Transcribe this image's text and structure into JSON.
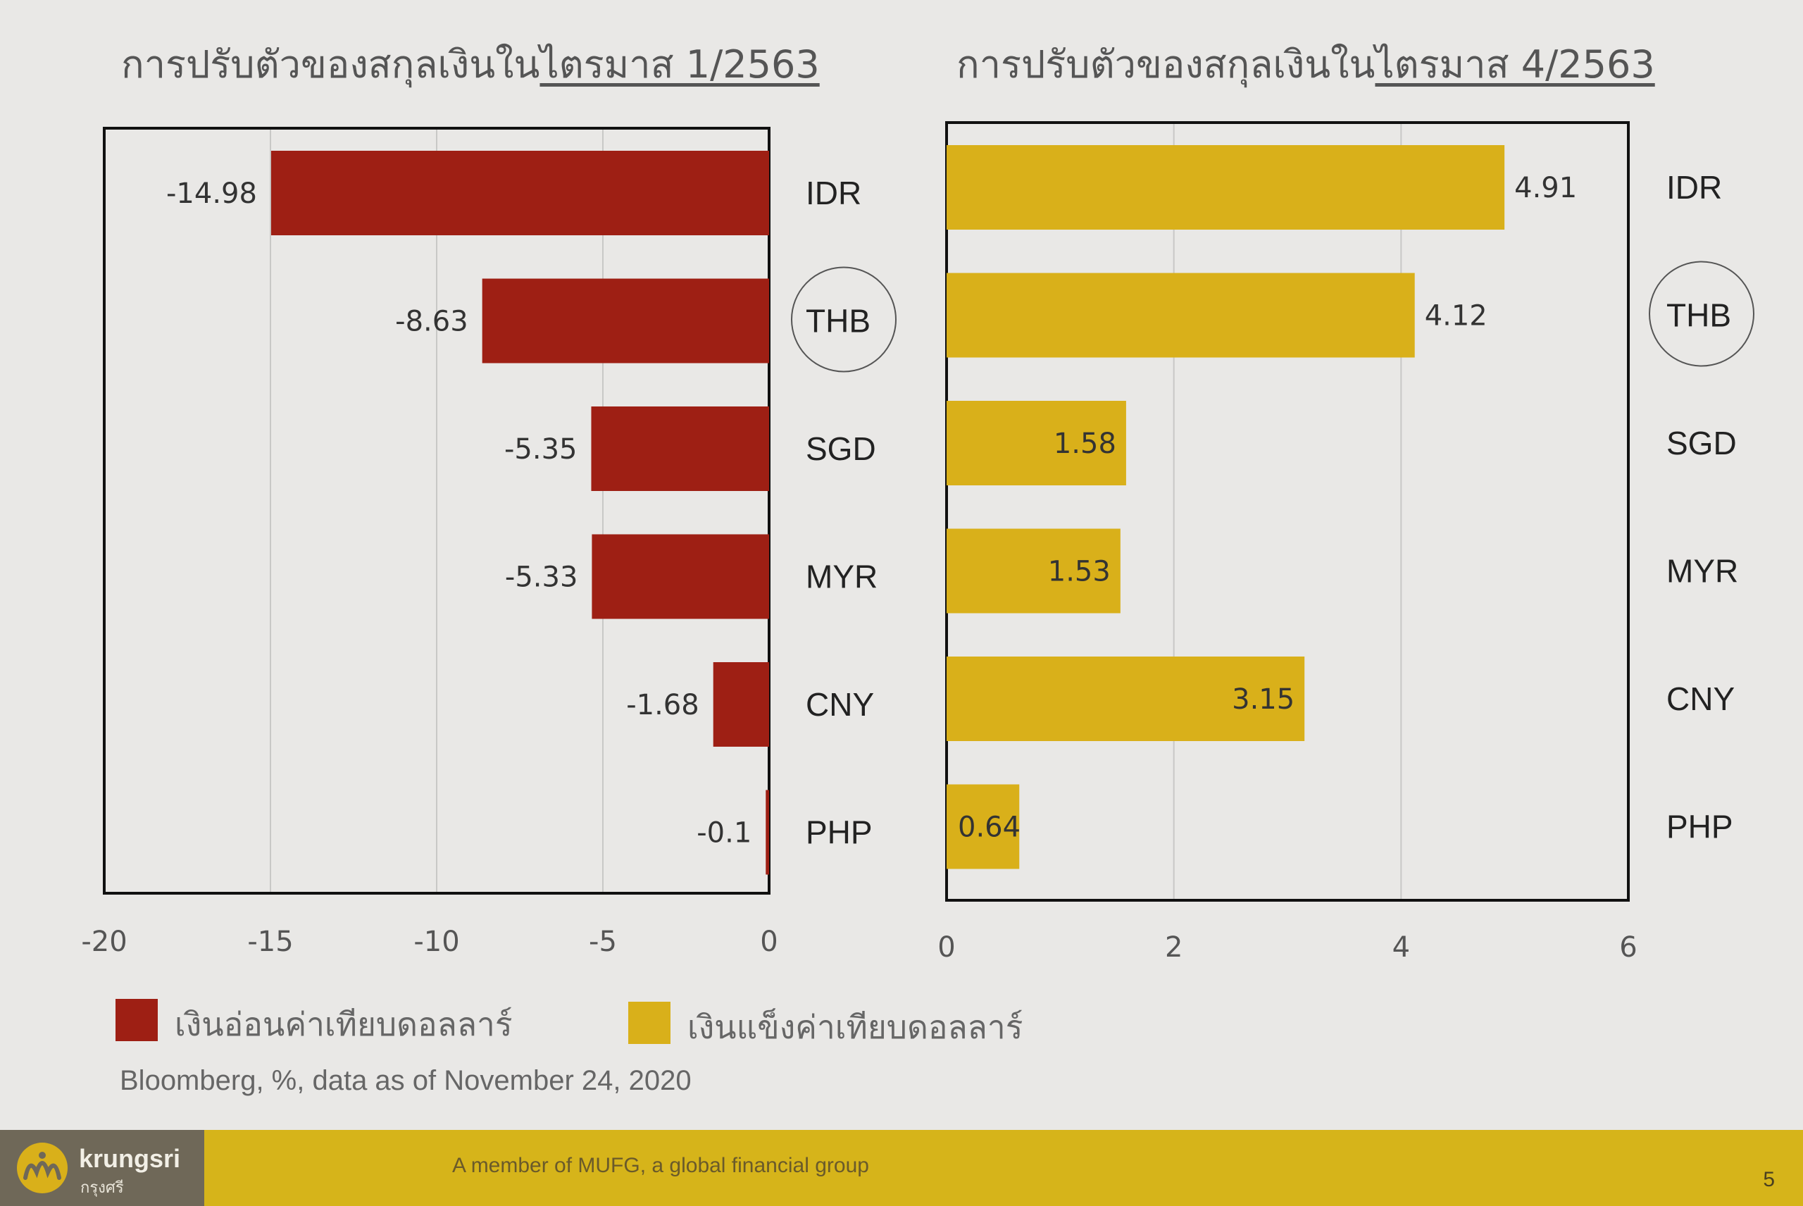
{
  "titles": {
    "left_prefix": "การปรับตัวของสกุลเงินใน",
    "left_underlined": "ไตรมาส 1/2563",
    "right_prefix": "การปรับตัวของสกุลเงินใน",
    "right_underlined": "ไตรมาส 4/2563"
  },
  "colors": {
    "weak": "#9e1f14",
    "strong": "#d9b01a",
    "footer_bar": "#d6b41a",
    "logo_bg": "#6f6858"
  },
  "chart_data": [
    {
      "type": "bar",
      "orientation": "horizontal",
      "title": "การปรับตัวของสกุลเงินในไตรมาส 1/2563",
      "categories": [
        "IDR",
        "THB",
        "SGD",
        "MYR",
        "CNY",
        "PHP"
      ],
      "values": [
        -14.98,
        -8.63,
        -5.35,
        -5.33,
        -1.68,
        -0.1
      ],
      "value_labels": [
        "-14.98",
        "-8.63",
        "-5.35",
        "-5.33",
        "-1.68",
        "-0.1"
      ],
      "xlim": [
        -20,
        0
      ],
      "xticks": [
        "-20",
        "-15",
        "-10",
        "-5",
        "0"
      ],
      "grid": true,
      "highlighted_category": "THB"
    },
    {
      "type": "bar",
      "orientation": "horizontal",
      "title": "การปรับตัวของสกุลเงินในไตรมาส 4/2563",
      "categories": [
        "IDR",
        "THB",
        "SGD",
        "MYR",
        "CNY",
        "PHP"
      ],
      "values": [
        4.91,
        4.12,
        1.58,
        1.53,
        3.15,
        0.64
      ],
      "value_labels": [
        "4.91",
        "4.12",
        "1.58",
        "1.53",
        "3.15",
        "0.64"
      ],
      "xlim": [
        0,
        6
      ],
      "xticks": [
        "0",
        "2",
        "4",
        "6"
      ],
      "grid": true,
      "highlighted_category": "THB"
    }
  ],
  "legend": {
    "weak_label": "เงินอ่อนค่าเทียบดอลลาร์",
    "strong_label": "เงินแข็งค่าเทียบดอลลาร์",
    "placement": "bottom-left"
  },
  "source": "Bloomberg, %, data as of November 24, 2020",
  "footer": {
    "brand": "krungsri",
    "brand_sub": "กรุงศรี",
    "tagline": "A member of MUFG, a global financial group",
    "page_number": "5"
  }
}
